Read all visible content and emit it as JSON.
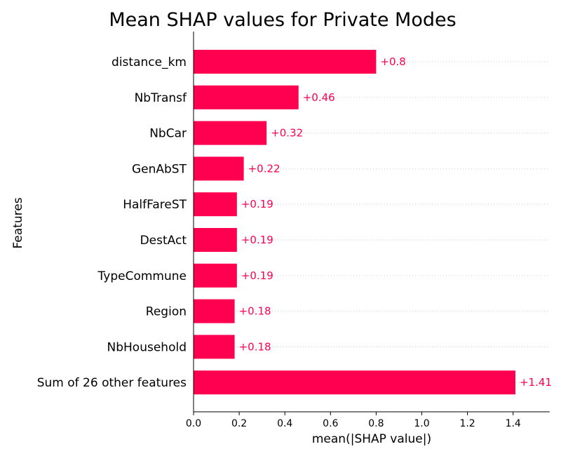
{
  "chart_data": {
    "type": "bar",
    "orientation": "horizontal",
    "title": "Mean SHAP values for Private Modes",
    "xlabel": "mean(|SHAP value|)",
    "ylabel": "Features",
    "categories": [
      "distance_km",
      "NbTransf",
      "NbCar",
      "GenAbST",
      "HalfFareST",
      "DestAct",
      "TypeCommune",
      "Region",
      "NbHousehold",
      "Sum of 26 other features"
    ],
    "values": [
      0.8,
      0.46,
      0.32,
      0.22,
      0.19,
      0.19,
      0.19,
      0.18,
      0.18,
      1.41
    ],
    "data_labels": [
      "+0.8",
      "+0.46",
      "+0.32",
      "+0.22",
      "+0.19",
      "+0.19",
      "+0.19",
      "+0.18",
      "+0.18",
      "+1.41"
    ],
    "xlim": [
      0,
      1.56
    ],
    "xticks": [
      0.0,
      0.2,
      0.4,
      0.6,
      0.8,
      1.0,
      1.2,
      1.4
    ],
    "xtick_labels": [
      "0.0",
      "0.2",
      "0.4",
      "0.6",
      "0.8",
      "1.0",
      "1.2",
      "1.4"
    ],
    "bar_color": "#ff0051",
    "gridlines": "dotted horizontal row guides",
    "legend": "none"
  }
}
